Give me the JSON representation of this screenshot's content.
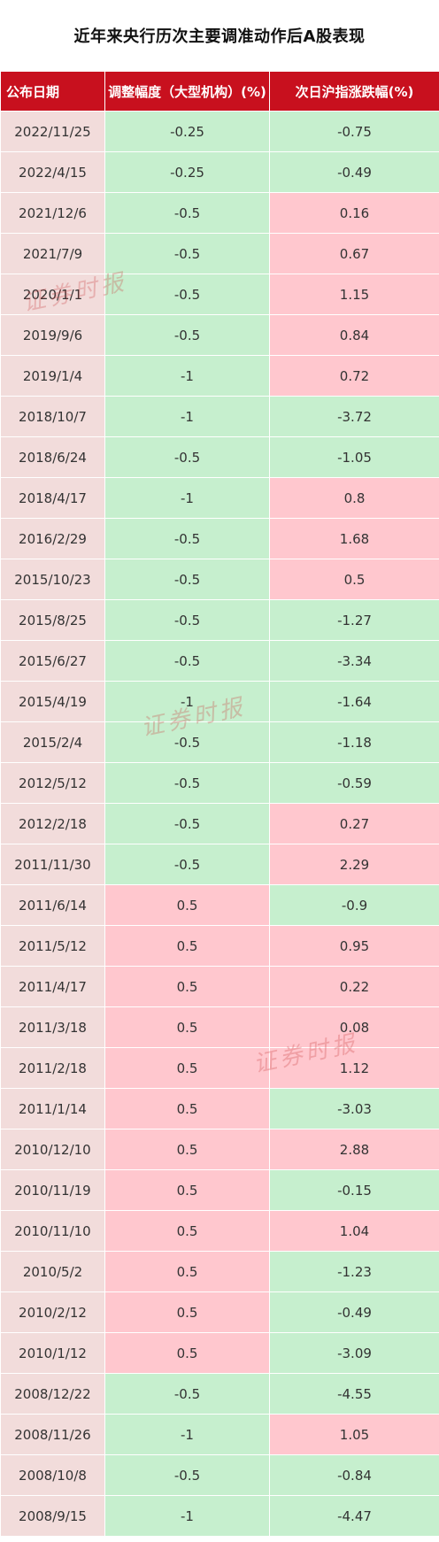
{
  "title": "近年来央行历次主要调准动作后A股表现",
  "headers": [
    "公布日期",
    "调整幅度（大型机构）(%)",
    "次日沪指涨跌幅(%)"
  ],
  "watermark_text": "证券时报",
  "colors": {
    "header_bg": "#c8101e",
    "date_bg": "#f2dcdb",
    "negative_bg": "#c6efce",
    "positive_bg": "#ffc7ce"
  },
  "rows": [
    {
      "date": "2022/11/25",
      "adjust": "-0.25",
      "change": "-0.75"
    },
    {
      "date": "2022/4/15",
      "adjust": "-0.25",
      "change": "-0.49"
    },
    {
      "date": "2021/12/6",
      "adjust": "-0.5",
      "change": "0.16"
    },
    {
      "date": "2021/7/9",
      "adjust": "-0.5",
      "change": "0.67"
    },
    {
      "date": "2020/1/1",
      "adjust": "-0.5",
      "change": "1.15"
    },
    {
      "date": "2019/9/6",
      "adjust": "-0.5",
      "change": "0.84"
    },
    {
      "date": "2019/1/4",
      "adjust": "-1",
      "change": "0.72"
    },
    {
      "date": "2018/10/7",
      "adjust": "-1",
      "change": "-3.72"
    },
    {
      "date": "2018/6/24",
      "adjust": "-0.5",
      "change": "-1.05"
    },
    {
      "date": "2018/4/17",
      "adjust": "-1",
      "change": "0.8"
    },
    {
      "date": "2016/2/29",
      "adjust": "-0.5",
      "change": "1.68"
    },
    {
      "date": "2015/10/23",
      "adjust": "-0.5",
      "change": "0.5"
    },
    {
      "date": "2015/8/25",
      "adjust": "-0.5",
      "change": "-1.27"
    },
    {
      "date": "2015/6/27",
      "adjust": "-0.5",
      "change": "-3.34"
    },
    {
      "date": "2015/4/19",
      "adjust": "-1",
      "change": "-1.64"
    },
    {
      "date": "2015/2/4",
      "adjust": "-0.5",
      "change": "-1.18"
    },
    {
      "date": "2012/5/12",
      "adjust": "-0.5",
      "change": "-0.59"
    },
    {
      "date": "2012/2/18",
      "adjust": "-0.5",
      "change": "0.27"
    },
    {
      "date": "2011/11/30",
      "adjust": "-0.5",
      "change": "2.29"
    },
    {
      "date": "2011/6/14",
      "adjust": "0.5",
      "change": "-0.9"
    },
    {
      "date": "2011/5/12",
      "adjust": "0.5",
      "change": "0.95"
    },
    {
      "date": "2011/4/17",
      "adjust": "0.5",
      "change": "0.22"
    },
    {
      "date": "2011/3/18",
      "adjust": "0.5",
      "change": "0.08"
    },
    {
      "date": "2011/2/18",
      "adjust": "0.5",
      "change": "1.12"
    },
    {
      "date": "2011/1/14",
      "adjust": "0.5",
      "change": "-3.03"
    },
    {
      "date": "2010/12/10",
      "adjust": "0.5",
      "change": "2.88"
    },
    {
      "date": "2010/11/19",
      "adjust": "0.5",
      "change": "-0.15"
    },
    {
      "date": "2010/11/10",
      "adjust": "0.5",
      "change": "1.04"
    },
    {
      "date": "2010/5/2",
      "adjust": "0.5",
      "change": "-1.23"
    },
    {
      "date": "2010/2/12",
      "adjust": "0.5",
      "change": "-0.49"
    },
    {
      "date": "2010/1/12",
      "adjust": "0.5",
      "change": "-3.09"
    },
    {
      "date": "2008/12/22",
      "adjust": "-0.5",
      "change": "-4.55"
    },
    {
      "date": "2008/11/26",
      "adjust": "-1",
      "change": "1.05"
    },
    {
      "date": "2008/10/8",
      "adjust": "-0.5",
      "change": "-0.84"
    },
    {
      "date": "2008/9/15",
      "adjust": "-1",
      "change": "-4.47"
    }
  ]
}
